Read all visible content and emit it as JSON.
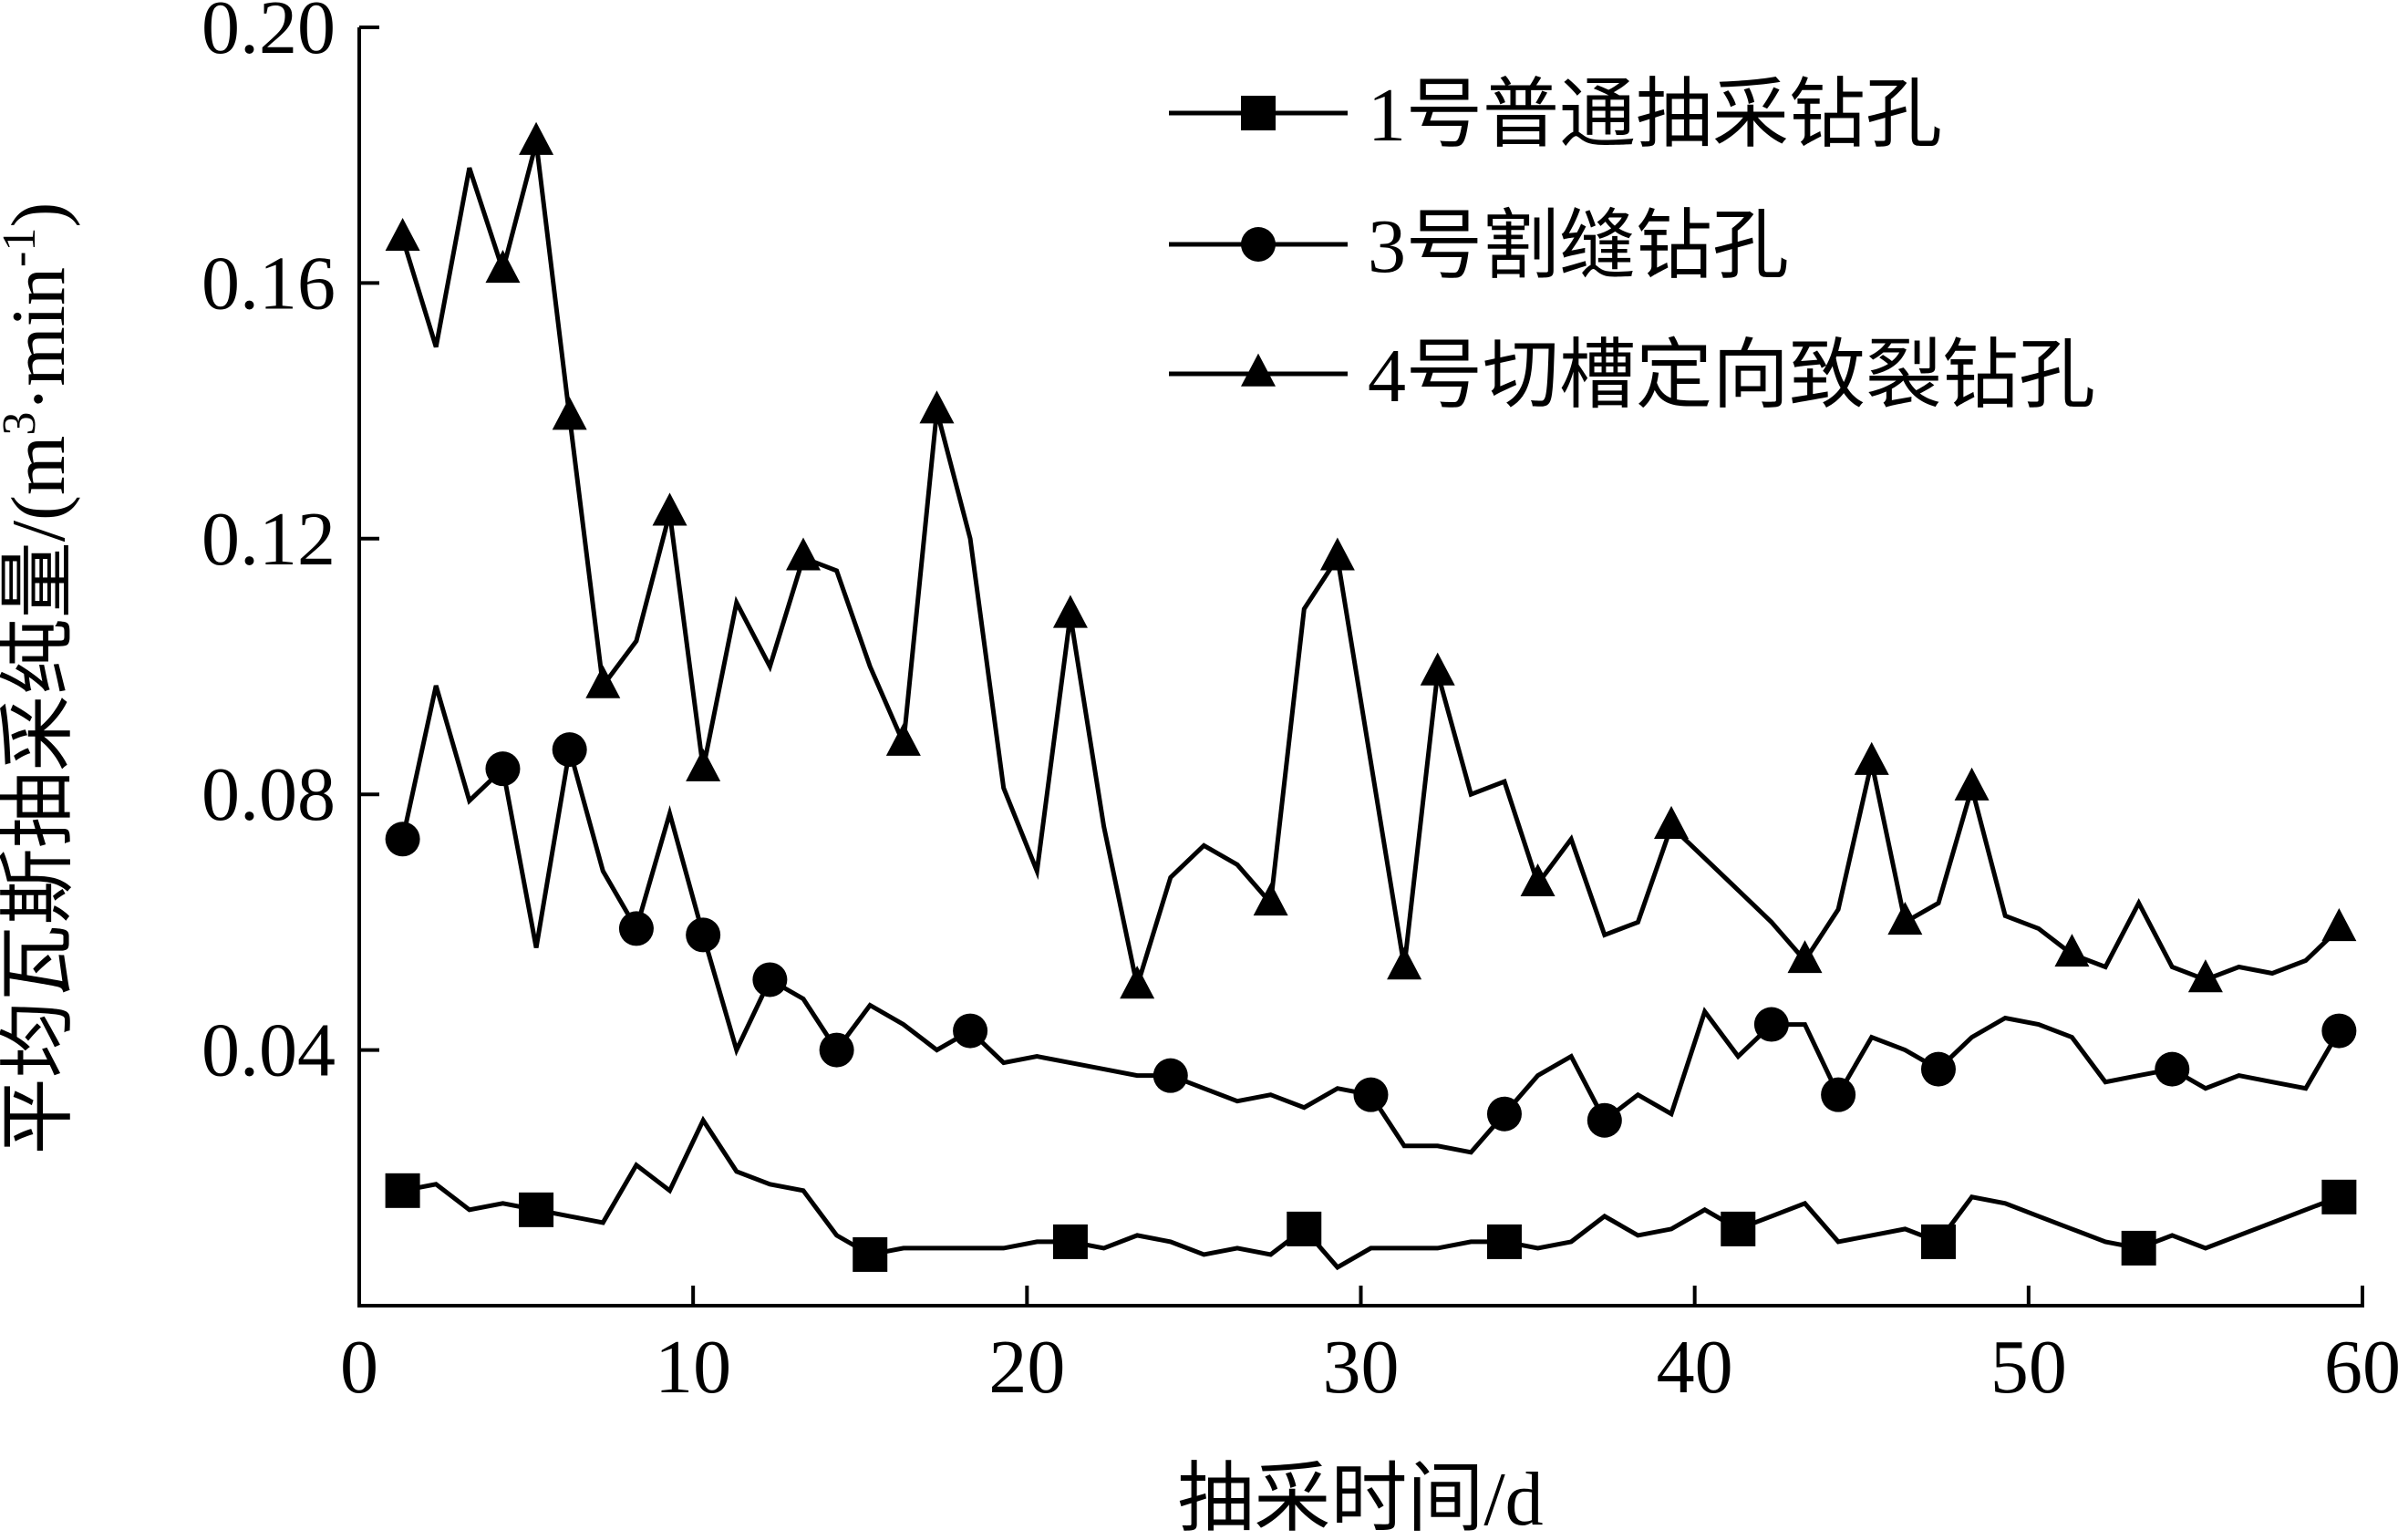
{
  "chart_data": {
    "type": "line",
    "title": "",
    "xlabel": "抽采时间/d",
    "ylabel": "平均瓦斯抽采纯量/(m³·min⁻¹)",
    "ylabel_parts": {
      "main": "平均瓦斯抽采纯量/(m",
      "sup1": "3",
      "mid": "·min",
      "sup2": "-1",
      "end": ")"
    },
    "xlim": [
      0,
      60
    ],
    "ylim": [
      0,
      0.2
    ],
    "x_ticks": [
      0,
      10,
      20,
      30,
      40,
      50,
      60
    ],
    "x_tick_labels": [
      "0",
      "10",
      "20",
      "30",
      "40",
      "50",
      "60"
    ],
    "y_ticks": [
      0.04,
      0.08,
      0.12,
      0.16,
      0.2
    ],
    "y_tick_labels": [
      "0.04",
      "0.08",
      "0.12",
      "0.16",
      "0.20"
    ],
    "grid": false,
    "legend_position": "top-right",
    "series": [
      {
        "name": "1号普通抽采钻孔",
        "marker": "square",
        "points": [
          [
            1.3,
            0.018
          ],
          [
            2.3,
            0.019
          ],
          [
            3.3,
            0.015
          ],
          [
            4.3,
            0.016
          ],
          [
            5.3,
            0.015
          ],
          [
            6.3,
            0.014
          ],
          [
            7.3,
            0.013
          ],
          [
            8.3,
            0.022
          ],
          [
            9.3,
            0.018
          ],
          [
            10.3,
            0.029
          ],
          [
            11.3,
            0.021
          ],
          [
            12.3,
            0.019
          ],
          [
            13.3,
            0.018
          ],
          [
            14.3,
            0.011
          ],
          [
            15.3,
            0.008
          ],
          [
            16.3,
            0.009
          ],
          [
            17.3,
            0.009
          ],
          [
            18.3,
            0.009
          ],
          [
            19.3,
            0.009
          ],
          [
            20.3,
            0.01
          ],
          [
            21.3,
            0.01
          ],
          [
            22.3,
            0.009
          ],
          [
            23.3,
            0.011
          ],
          [
            24.3,
            0.01
          ],
          [
            25.3,
            0.008
          ],
          [
            26.3,
            0.009
          ],
          [
            27.3,
            0.008
          ],
          [
            28.3,
            0.012
          ],
          [
            29.3,
            0.006
          ],
          [
            30.3,
            0.009
          ],
          [
            31.3,
            0.009
          ],
          [
            32.3,
            0.009
          ],
          [
            33.3,
            0.01
          ],
          [
            34.3,
            0.01
          ],
          [
            35.3,
            0.009
          ],
          [
            36.3,
            0.01
          ],
          [
            37.3,
            0.014
          ],
          [
            38.3,
            0.011
          ],
          [
            39.3,
            0.012
          ],
          [
            40.3,
            0.015
          ],
          [
            41.3,
            0.012
          ],
          [
            42.3,
            0.014
          ],
          [
            43.3,
            0.016
          ],
          [
            44.3,
            0.01
          ],
          [
            45.3,
            0.011
          ],
          [
            46.3,
            0.012
          ],
          [
            47.3,
            0.01
          ],
          [
            48.3,
            0.017
          ],
          [
            49.3,
            0.016
          ],
          [
            50.3,
            0.014
          ],
          [
            51.3,
            0.012
          ],
          [
            52.3,
            0.01
          ],
          [
            53.3,
            0.009
          ],
          [
            54.3,
            0.011
          ],
          [
            55.3,
            0.009
          ],
          [
            56.3,
            0.011
          ],
          [
            57.3,
            0.013
          ],
          [
            58.3,
            0.015
          ],
          [
            59.3,
            0.017
          ]
        ],
        "marker_x": [
          1.3,
          5.3,
          15.3,
          21.3,
          28.3,
          34.3,
          41.3,
          47.3,
          53.3,
          59.3
        ]
      },
      {
        "name": "3号割缝钻孔",
        "marker": "circle",
        "points": [
          [
            1.3,
            0.073
          ],
          [
            2.3,
            0.097
          ],
          [
            3.3,
            0.079
          ],
          [
            4.3,
            0.084
          ],
          [
            5.3,
            0.056
          ],
          [
            6.3,
            0.087
          ],
          [
            7.3,
            0.068
          ],
          [
            8.3,
            0.059
          ],
          [
            9.3,
            0.077
          ],
          [
            10.3,
            0.058
          ],
          [
            11.3,
            0.04
          ],
          [
            12.3,
            0.051
          ],
          [
            13.3,
            0.048
          ],
          [
            14.3,
            0.04
          ],
          [
            15.3,
            0.047
          ],
          [
            16.3,
            0.044
          ],
          [
            17.3,
            0.04
          ],
          [
            18.3,
            0.043
          ],
          [
            19.3,
            0.038
          ],
          [
            20.3,
            0.039
          ],
          [
            21.3,
            0.038
          ],
          [
            22.3,
            0.037
          ],
          [
            23.3,
            0.036
          ],
          [
            24.3,
            0.036
          ],
          [
            25.3,
            0.034
          ],
          [
            26.3,
            0.032
          ],
          [
            27.3,
            0.033
          ],
          [
            28.3,
            0.031
          ],
          [
            29.3,
            0.034
          ],
          [
            30.3,
            0.033
          ],
          [
            31.3,
            0.025
          ],
          [
            32.3,
            0.025
          ],
          [
            33.3,
            0.024
          ],
          [
            34.3,
            0.03
          ],
          [
            35.3,
            0.036
          ],
          [
            36.3,
            0.039
          ],
          [
            37.3,
            0.029
          ],
          [
            38.3,
            0.033
          ],
          [
            39.3,
            0.03
          ],
          [
            40.3,
            0.046
          ],
          [
            41.3,
            0.039
          ],
          [
            42.3,
            0.044
          ],
          [
            43.3,
            0.044
          ],
          [
            44.3,
            0.033
          ],
          [
            45.3,
            0.042
          ],
          [
            46.3,
            0.04
          ],
          [
            47.3,
            0.037
          ],
          [
            48.3,
            0.042
          ],
          [
            49.3,
            0.045
          ],
          [
            50.3,
            0.044
          ],
          [
            51.3,
            0.042
          ],
          [
            52.3,
            0.035
          ],
          [
            53.3,
            0.036
          ],
          [
            54.3,
            0.037
          ],
          [
            55.3,
            0.034
          ],
          [
            56.3,
            0.036
          ],
          [
            57.3,
            0.035
          ],
          [
            58.3,
            0.034
          ],
          [
            59.3,
            0.043
          ]
        ],
        "marker_x": [
          1.3,
          4.3,
          6.3,
          8.3,
          10.3,
          12.3,
          14.3,
          18.3,
          24.3,
          30.3,
          34.3,
          37.3,
          42.3,
          44.3,
          47.3,
          54.3,
          59.3
        ]
      },
      {
        "name": "4号切槽定向致裂钻孔",
        "marker": "triangle",
        "points": [
          [
            1.3,
            0.167
          ],
          [
            2.3,
            0.15
          ],
          [
            3.3,
            0.178
          ],
          [
            4.3,
            0.162
          ],
          [
            5.3,
            0.182
          ],
          [
            6.3,
            0.139
          ],
          [
            7.3,
            0.097
          ],
          [
            8.3,
            0.104
          ],
          [
            9.3,
            0.124
          ],
          [
            10.3,
            0.084
          ],
          [
            11.3,
            0.11
          ],
          [
            12.3,
            0.1
          ],
          [
            13.3,
            0.117
          ],
          [
            14.3,
            0.115
          ],
          [
            15.3,
            0.1
          ],
          [
            16.3,
            0.088
          ],
          [
            17.3,
            0.14
          ],
          [
            18.3,
            0.12
          ],
          [
            19.3,
            0.081
          ],
          [
            20.3,
            0.068
          ],
          [
            21.3,
            0.108
          ],
          [
            22.3,
            0.075
          ],
          [
            23.3,
            0.05
          ],
          [
            24.3,
            0.067
          ],
          [
            25.3,
            0.072
          ],
          [
            26.3,
            0.069
          ],
          [
            27.3,
            0.063
          ],
          [
            28.3,
            0.109
          ],
          [
            29.3,
            0.117
          ],
          [
            30.3,
            0.085
          ],
          [
            31.3,
            0.053
          ],
          [
            32.3,
            0.099
          ],
          [
            33.3,
            0.08
          ],
          [
            34.3,
            0.082
          ],
          [
            35.3,
            0.066
          ],
          [
            36.3,
            0.073
          ],
          [
            37.3,
            0.058
          ],
          [
            38.3,
            0.06
          ],
          [
            39.3,
            0.075
          ],
          [
            40.3,
            0.07
          ],
          [
            41.3,
            0.065
          ],
          [
            42.3,
            0.06
          ],
          [
            43.3,
            0.054
          ],
          [
            44.3,
            0.062
          ],
          [
            45.3,
            0.085
          ],
          [
            46.3,
            0.06
          ],
          [
            47.3,
            0.063
          ],
          [
            48.3,
            0.081
          ],
          [
            49.3,
            0.061
          ],
          [
            50.3,
            0.059
          ],
          [
            51.3,
            0.055
          ],
          [
            52.3,
            0.053
          ],
          [
            53.3,
            0.063
          ],
          [
            54.3,
            0.053
          ],
          [
            55.3,
            0.051
          ],
          [
            56.3,
            0.053
          ],
          [
            57.3,
            0.052
          ],
          [
            58.3,
            0.054
          ],
          [
            59.3,
            0.059
          ]
        ],
        "marker_x": [
          1.3,
          4.3,
          5.3,
          6.3,
          7.3,
          9.3,
          10.3,
          13.3,
          16.3,
          17.3,
          21.3,
          23.3,
          27.3,
          29.3,
          31.3,
          32.3,
          35.3,
          39.3,
          43.3,
          45.3,
          46.3,
          48.3,
          51.3,
          55.3,
          59.3
        ]
      }
    ]
  }
}
